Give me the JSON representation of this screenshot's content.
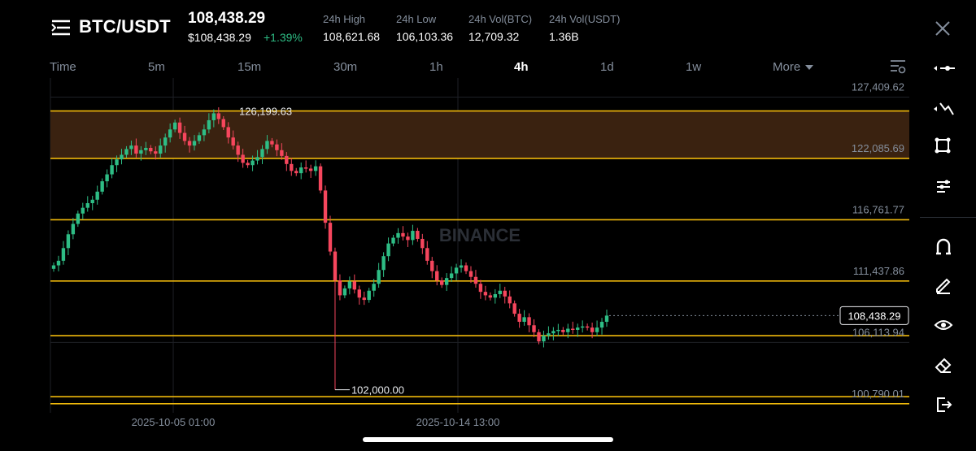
{
  "header": {
    "pair": "BTC/USDT",
    "last_price": "108,438.29",
    "fiat_price": "$108,438.29",
    "change": "+1.39%",
    "stats": [
      {
        "label": "24h High",
        "value": "108,621.68"
      },
      {
        "label": "24h Low",
        "value": "106,103.36"
      },
      {
        "label": "24h Vol(BTC)",
        "value": "12,709.32"
      },
      {
        "label": "24h Vol(USDT)",
        "value": "1.36B"
      }
    ]
  },
  "timeframes": {
    "label": "Time",
    "items": [
      "5m",
      "15m",
      "30m",
      "1h",
      "4h",
      "1d",
      "1w"
    ],
    "active": "4h",
    "more": "More"
  },
  "chart": {
    "watermark": "BINANCE",
    "price_ticks": [
      "127,409.62",
      "122,085.69",
      "116,761.77",
      "111,437.86",
      "106,113.94",
      "100,790.01"
    ],
    "x_ticks": [
      "2025-10-05 01:00",
      "2025-10-14 13:00"
    ],
    "current_price_label": "108,438.29",
    "high_label": "126,199.63",
    "low_label": "102,000.00",
    "colors": {
      "up": "#2ebd85",
      "down": "#f6465d",
      "level": "#f0b90b",
      "zone": "#3a2210",
      "grid": "#1e2026"
    }
  },
  "chart_data": {
    "type": "candlestick",
    "y_range": [
      100000,
      128500
    ],
    "price_axis_ticks": [
      127409.62,
      122085.69,
      116761.77,
      111437.86,
      106113.94,
      100790.01
    ],
    "x_axis_ticks": [
      "2025-10-05 01:00",
      "2025-10-14 13:00"
    ],
    "last_price": 108438.29,
    "annotated_high": 126199.63,
    "annotated_low": 102000.0,
    "horizontal_levels": [
      126199.63,
      122086,
      116762,
      111438,
      106700,
      101400,
      100790
    ],
    "resistance_zone": [
      122086,
      126199.63
    ],
    "close_path": [
      112800,
      113200,
      114300,
      115500,
      116400,
      117300,
      117800,
      118200,
      118500,
      119200,
      120100,
      120700,
      121500,
      122000,
      122400,
      122900,
      123200,
      122500,
      122800,
      123000,
      122700,
      122500,
      123200,
      123900,
      124600,
      125200,
      124300,
      123600,
      123200,
      123600,
      124100,
      124600,
      125400,
      126000,
      125500,
      124800,
      123900,
      123200,
      122400,
      121700,
      121500,
      121900,
      122200,
      122900,
      123600,
      123300,
      122800,
      122300,
      121600,
      121000,
      120800,
      121300,
      121200,
      121000,
      121400,
      119300,
      116500,
      114000,
      111500,
      110200,
      110800,
      111400,
      110700,
      110000,
      109800,
      110600,
      111200,
      112400,
      113600,
      114700,
      115200,
      115600,
      115300,
      115000,
      115800,
      115100,
      114300,
      113200,
      112300,
      111500,
      111100,
      111700,
      112100,
      112600,
      112800,
      112300,
      111800,
      111200,
      110500,
      110200,
      110000,
      110300,
      110600,
      110100,
      109500,
      108600,
      107900,
      108300,
      107600,
      107000,
      106200,
      106700,
      106900,
      107100,
      107200,
      107000,
      107300,
      107200,
      107400,
      107500,
      107400,
      107000,
      107400,
      107900,
      108438.29
    ]
  },
  "toolbar": {
    "items": [
      "crosshair-tool",
      "trendline-tool",
      "shapes-tool",
      "indicators-tool",
      "magnet-tool",
      "brush-tool",
      "visibility-tool",
      "eraser-tool",
      "exit-tool"
    ]
  }
}
